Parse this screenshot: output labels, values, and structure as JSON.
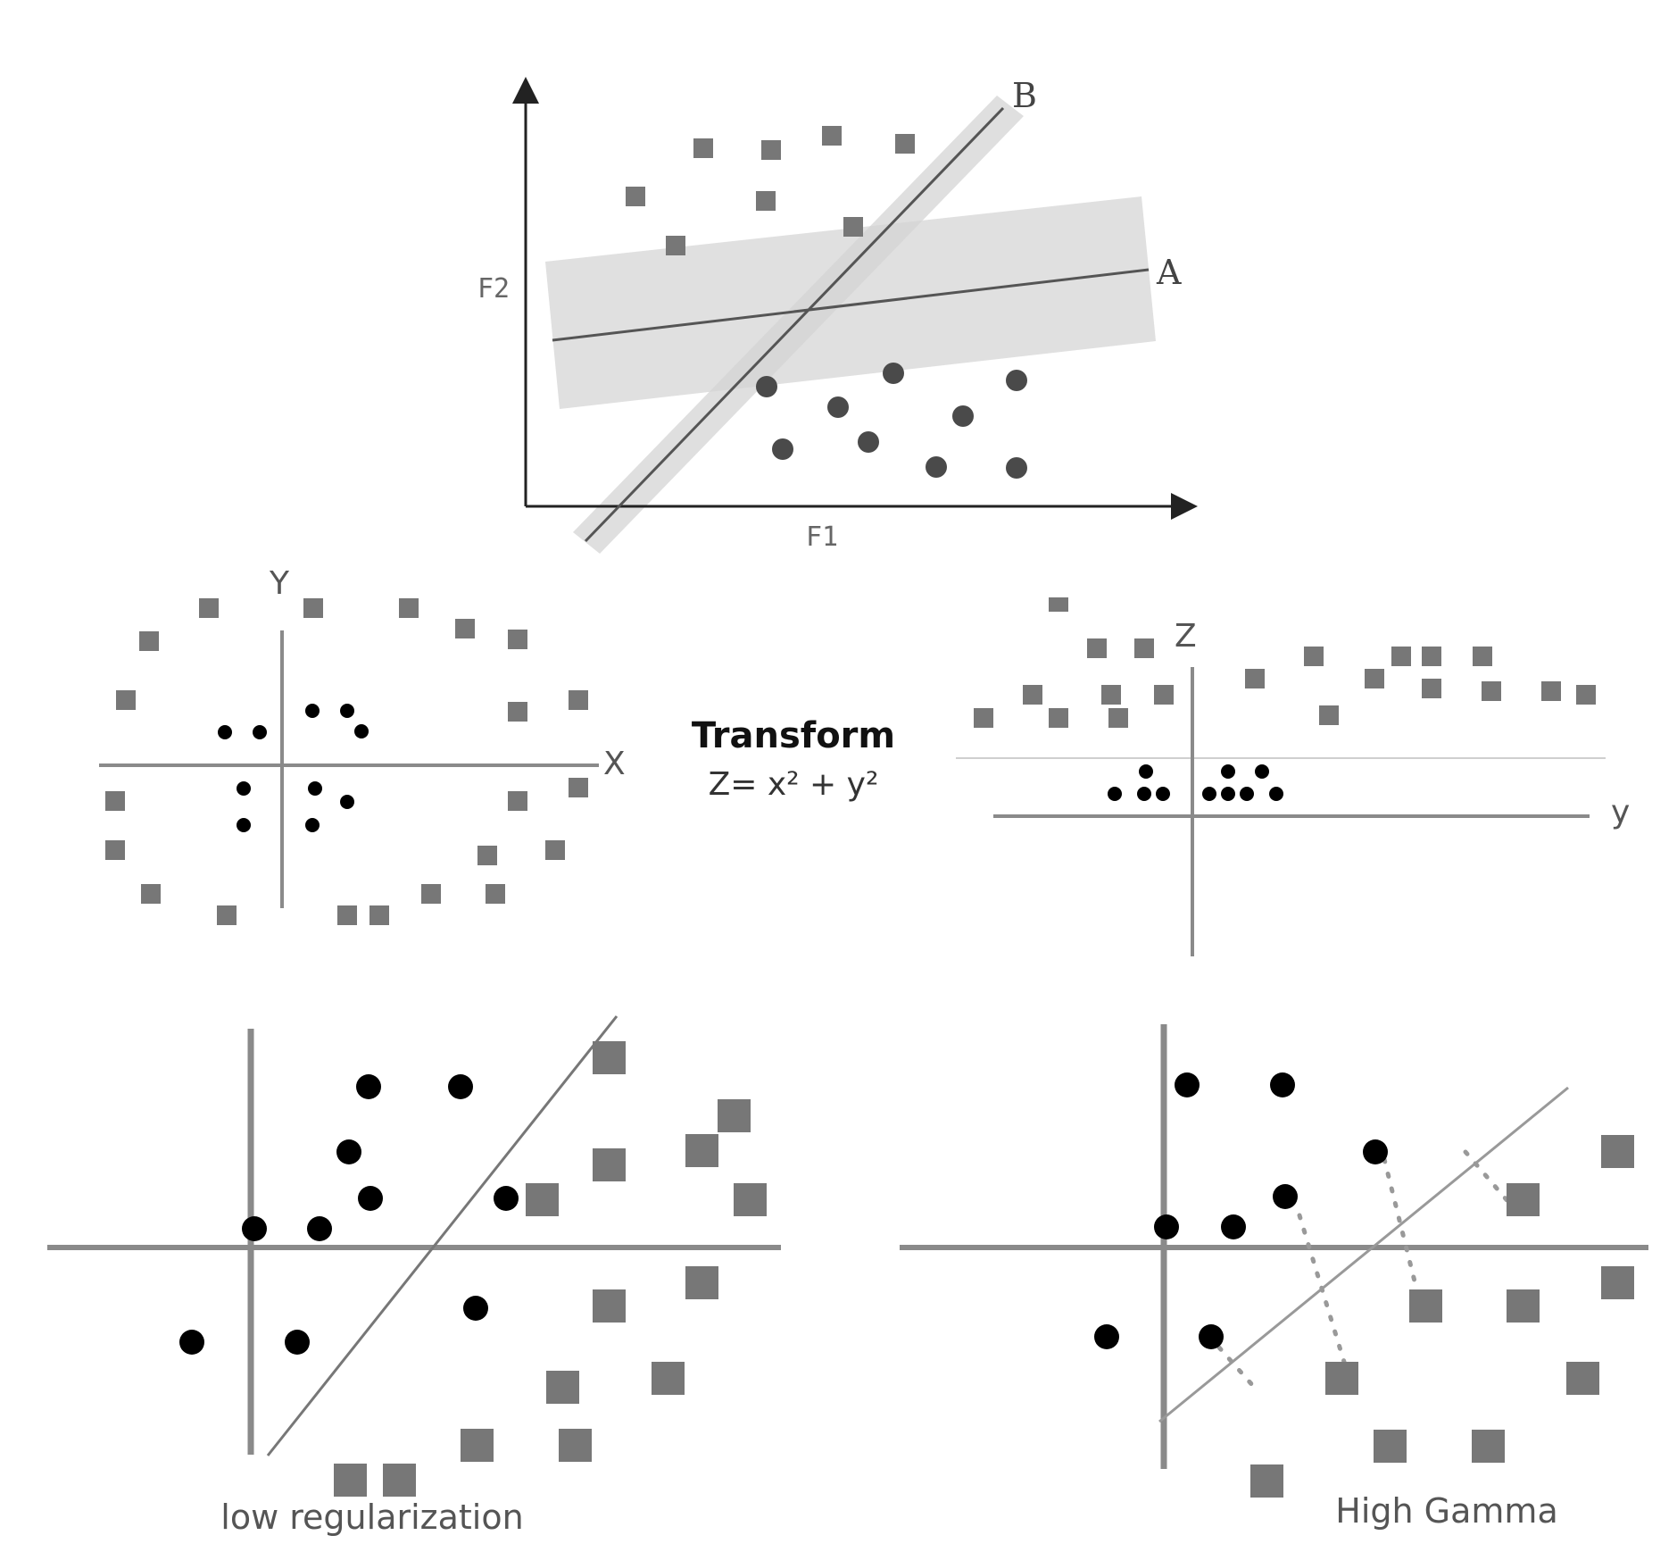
{
  "colors": {
    "square": "#777777",
    "circle_dark": "#4a4a4a",
    "circle_black": "#000000",
    "axis_dark": "#222222",
    "axis_gray": "#8a8a8a",
    "margin_band": "#e0e0e0",
    "line": "#555555"
  },
  "panel_margin": {
    "x_label": "F1",
    "y_label": "F2",
    "line_a_label": "A",
    "line_b_label": "B"
  },
  "panel_circle": {
    "x_label": "X",
    "y_label": "Y"
  },
  "transform": {
    "title": "Transform",
    "equation": "Z= x² + y²"
  },
  "panel_projected": {
    "z_label": "Z",
    "y_label": "y"
  },
  "panel_low_reg": {
    "caption": "low regularization"
  },
  "panel_high_gamma": {
    "caption": "High Gamma"
  }
}
